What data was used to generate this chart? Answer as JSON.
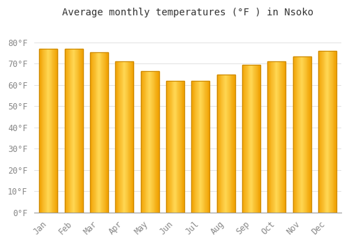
{
  "title": "Average monthly temperatures (°F ) in Nsoko",
  "months": [
    "Jan",
    "Feb",
    "Mar",
    "Apr",
    "May",
    "Jun",
    "Jul",
    "Aug",
    "Sep",
    "Oct",
    "Nov",
    "Dec"
  ],
  "values": [
    77.0,
    77.0,
    75.5,
    71.0,
    66.5,
    62.0,
    62.0,
    65.0,
    69.5,
    71.0,
    73.5,
    76.0
  ],
  "bar_color_center": "#FFD040",
  "bar_color_edge": "#F5A000",
  "background_color": "#FFFFFF",
  "grid_color": "#DDDDDD",
  "ylim": [
    0,
    90
  ],
  "yticks": [
    0,
    10,
    20,
    30,
    40,
    50,
    60,
    70,
    80
  ],
  "title_fontsize": 10,
  "tick_fontsize": 8.5,
  "tick_color": "#888888",
  "title_color": "#333333"
}
